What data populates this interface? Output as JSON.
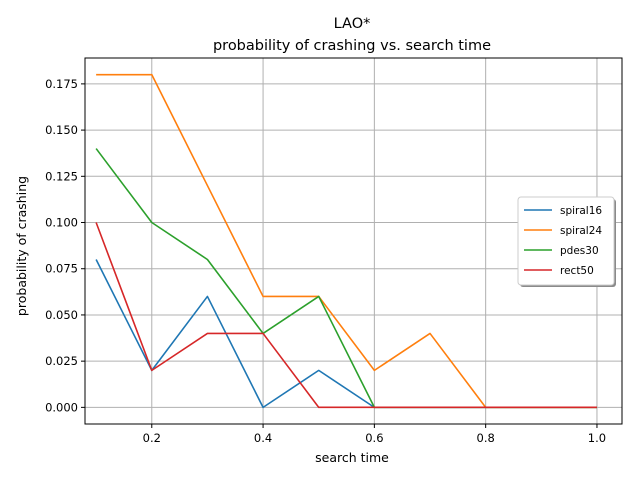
{
  "chart_data": {
    "type": "line",
    "title": "LAO*",
    "subtitle": "probability of crashing vs. search time",
    "xlabel": "search time",
    "ylabel": "probability of crashing",
    "xlim": [
      0.08,
      1.045
    ],
    "ylim": [
      -0.009,
      0.189
    ],
    "xticks": [
      0.2,
      0.4,
      0.6,
      0.8,
      1.0
    ],
    "xtick_labels": [
      "0.2",
      "0.4",
      "0.6",
      "0.8",
      "1.0"
    ],
    "yticks": [
      0.0,
      0.025,
      0.05,
      0.075,
      0.1,
      0.125,
      0.15,
      0.175
    ],
    "ytick_labels": [
      "0.000",
      "0.025",
      "0.050",
      "0.075",
      "0.100",
      "0.125",
      "0.150",
      "0.175"
    ],
    "grid": true,
    "legend_position": "center-right",
    "x": [
      0.1,
      0.2,
      0.3,
      0.4,
      0.5,
      0.6,
      0.7,
      0.8,
      0.9,
      1.0
    ],
    "series": [
      {
        "name": "spiral16",
        "color": "#1f77b4",
        "values": [
          0.08,
          0.02,
          0.06,
          0.0,
          0.02,
          0.0,
          0.0,
          0.0,
          0.0,
          0.0
        ]
      },
      {
        "name": "spiral24",
        "color": "#ff7f0e",
        "values": [
          0.18,
          0.18,
          0.12,
          0.06,
          0.06,
          0.02,
          0.04,
          0.0,
          0.0,
          0.0
        ]
      },
      {
        "name": "pdes30",
        "color": "#2ca02c",
        "values": [
          0.14,
          0.1,
          0.08,
          0.04,
          0.06,
          0.0,
          0.0,
          0.0,
          0.0,
          0.0
        ]
      },
      {
        "name": "rect50",
        "color": "#d62728",
        "values": [
          0.1,
          0.02,
          0.04,
          0.04,
          0.0,
          0.0,
          0.0,
          0.0,
          0.0,
          0.0
        ]
      }
    ]
  }
}
